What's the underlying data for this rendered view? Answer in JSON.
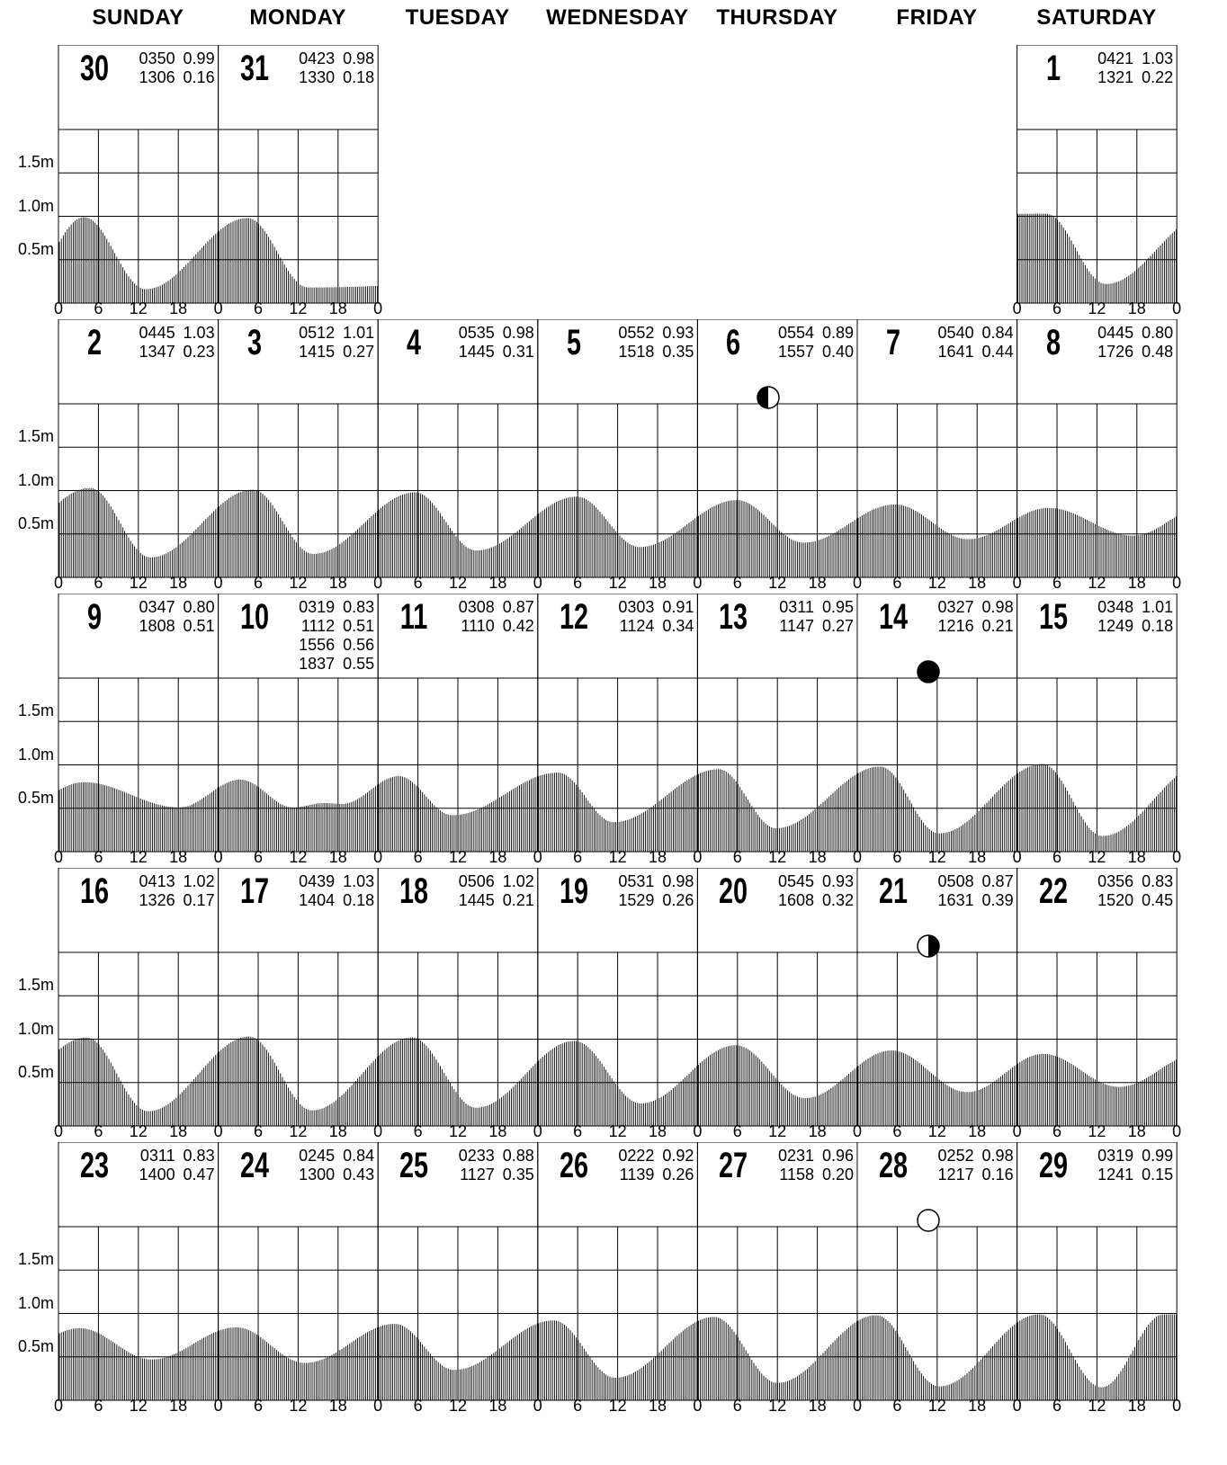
{
  "weekdays": [
    "SUNDAY",
    "MONDAY",
    "TUESDAY",
    "WEDNESDAY",
    "THURSDAY",
    "FRIDAY",
    "SATURDAY"
  ],
  "y_labels": [
    "1.5m",
    "1.0m",
    "0.5m"
  ],
  "x_labels": [
    "0",
    "6",
    "12",
    "18"
  ],
  "x_end_label": "0",
  "chart_data": {
    "type": "area",
    "xlabel": "",
    "ylabel": "",
    "x_unit": "hour",
    "y_unit": "m",
    "ylim": [
      0,
      2.0
    ],
    "y_ticks": [
      0.5,
      1.0,
      1.5
    ],
    "x_ticks": [
      0,
      6,
      12,
      18,
      24
    ],
    "weeks": [
      [
        {
          "day": "30",
          "tides": [
            [
              "0350",
              "0.99"
            ],
            [
              "1306",
              "0.16"
            ]
          ]
        },
        {
          "day": "31",
          "tides": [
            [
              "0423",
              "0.98"
            ],
            [
              "1330",
              "0.18"
            ]
          ]
        },
        null,
        null,
        null,
        null,
        {
          "day": "1",
          "tides": [
            [
              "0421",
              "1.03"
            ],
            [
              "1321",
              "0.22"
            ]
          ]
        }
      ],
      [
        {
          "day": "2",
          "tides": [
            [
              "0445",
              "1.03"
            ],
            [
              "1347",
              "0.23"
            ]
          ]
        },
        {
          "day": "3",
          "tides": [
            [
              "0512",
              "1.01"
            ],
            [
              "1415",
              "0.27"
            ]
          ]
        },
        {
          "day": "4",
          "tides": [
            [
              "0535",
              "0.98"
            ],
            [
              "1445",
              "0.31"
            ]
          ]
        },
        {
          "day": "5",
          "tides": [
            [
              "0552",
              "0.93"
            ],
            [
              "1518",
              "0.35"
            ]
          ]
        },
        {
          "day": "6",
          "tides": [
            [
              "0554",
              "0.89"
            ],
            [
              "1557",
              "0.40"
            ]
          ],
          "moon": "first-quarter"
        },
        {
          "day": "7",
          "tides": [
            [
              "0540",
              "0.84"
            ],
            [
              "1641",
              "0.44"
            ]
          ]
        },
        {
          "day": "8",
          "tides": [
            [
              "0445",
              "0.80"
            ],
            [
              "1726",
              "0.48"
            ]
          ]
        }
      ],
      [
        {
          "day": "9",
          "tides": [
            [
              "0347",
              "0.80"
            ],
            [
              "1808",
              "0.51"
            ]
          ]
        },
        {
          "day": "10",
          "tides": [
            [
              "0319",
              "0.83"
            ],
            [
              "1112",
              "0.51"
            ],
            [
              "1556",
              "0.56"
            ],
            [
              "1837",
              "0.55"
            ]
          ]
        },
        {
          "day": "11",
          "tides": [
            [
              "0308",
              "0.87"
            ],
            [
              "1110",
              "0.42"
            ]
          ]
        },
        {
          "day": "12",
          "tides": [
            [
              "0303",
              "0.91"
            ],
            [
              "1124",
              "0.34"
            ]
          ]
        },
        {
          "day": "13",
          "tides": [
            [
              "0311",
              "0.95"
            ],
            [
              "1147",
              "0.27"
            ]
          ]
        },
        {
          "day": "14",
          "tides": [
            [
              "0327",
              "0.98"
            ],
            [
              "1216",
              "0.21"
            ]
          ],
          "moon": "new"
        },
        {
          "day": "15",
          "tides": [
            [
              "0348",
              "1.01"
            ],
            [
              "1249",
              "0.18"
            ]
          ]
        }
      ],
      [
        {
          "day": "16",
          "tides": [
            [
              "0413",
              "1.02"
            ],
            [
              "1326",
              "0.17"
            ]
          ]
        },
        {
          "day": "17",
          "tides": [
            [
              "0439",
              "1.03"
            ],
            [
              "1404",
              "0.18"
            ]
          ]
        },
        {
          "day": "18",
          "tides": [
            [
              "0506",
              "1.02"
            ],
            [
              "1445",
              "0.21"
            ]
          ]
        },
        {
          "day": "19",
          "tides": [
            [
              "0531",
              "0.98"
            ],
            [
              "1529",
              "0.26"
            ]
          ]
        },
        {
          "day": "20",
          "tides": [
            [
              "0545",
              "0.93"
            ],
            [
              "1608",
              "0.32"
            ]
          ]
        },
        {
          "day": "21",
          "tides": [
            [
              "0508",
              "0.87"
            ],
            [
              "1631",
              "0.39"
            ]
          ],
          "moon": "last-quarter"
        },
        {
          "day": "22",
          "tides": [
            [
              "0356",
              "0.83"
            ],
            [
              "1520",
              "0.45"
            ]
          ]
        }
      ],
      [
        {
          "day": "23",
          "tides": [
            [
              "0311",
              "0.83"
            ],
            [
              "1400",
              "0.47"
            ]
          ]
        },
        {
          "day": "24",
          "tides": [
            [
              "0245",
              "0.84"
            ],
            [
              "1300",
              "0.43"
            ]
          ]
        },
        {
          "day": "25",
          "tides": [
            [
              "0233",
              "0.88"
            ],
            [
              "1127",
              "0.35"
            ]
          ]
        },
        {
          "day": "26",
          "tides": [
            [
              "0222",
              "0.92"
            ],
            [
              "1139",
              "0.26"
            ]
          ]
        },
        {
          "day": "27",
          "tides": [
            [
              "0231",
              "0.96"
            ],
            [
              "1158",
              "0.20"
            ]
          ]
        },
        {
          "day": "28",
          "tides": [
            [
              "0252",
              "0.98"
            ],
            [
              "1217",
              "0.16"
            ]
          ],
          "moon": "full"
        },
        {
          "day": "29",
          "tides": [
            [
              "0319",
              "0.99"
            ],
            [
              "1241",
              "0.15"
            ]
          ]
        }
      ]
    ]
  }
}
